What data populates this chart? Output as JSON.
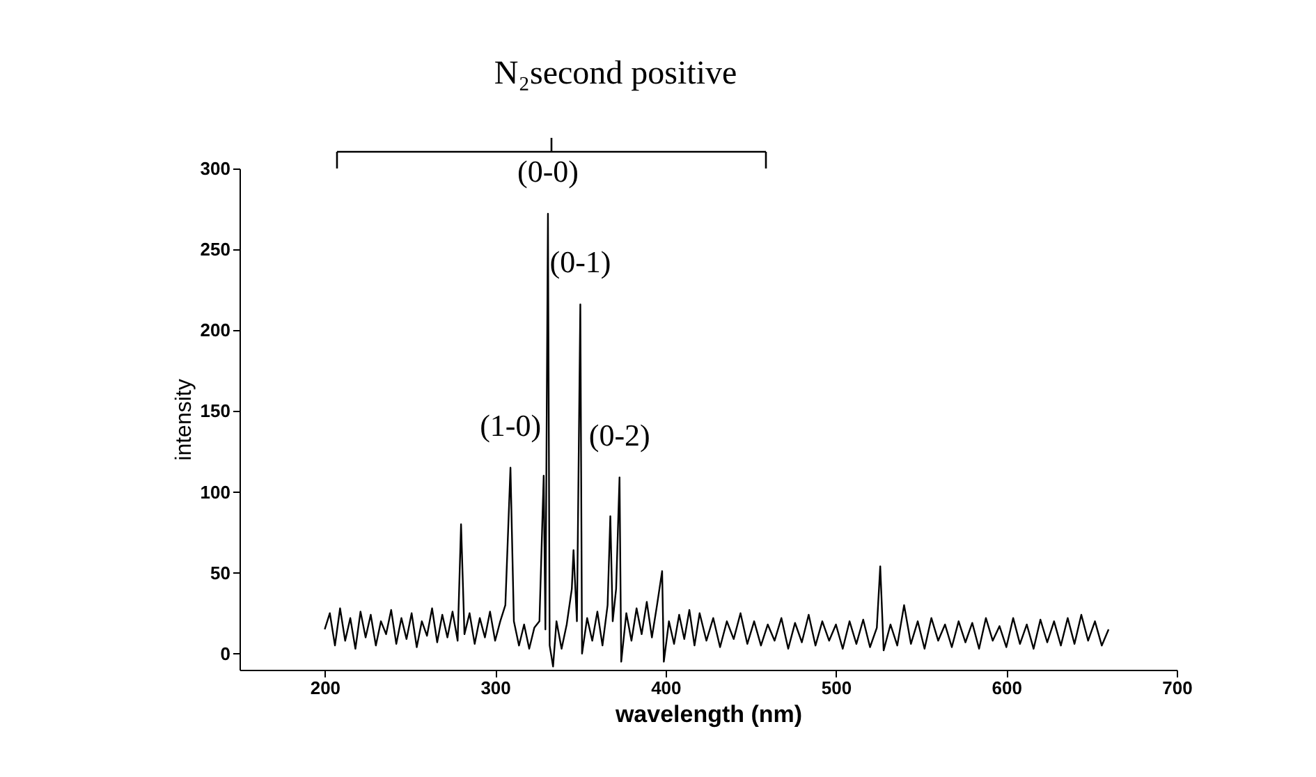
{
  "chart_data": {
    "type": "line",
    "title": "N₂second positive",
    "xlabel": "wavelength (nm)",
    "ylabel": "intensity",
    "xlim": [
      150,
      700
    ],
    "xticks": [
      200,
      300,
      400,
      500,
      600,
      700
    ],
    "ylim": [
      -10,
      300
    ],
    "yticks": [
      0,
      50,
      100,
      150,
      200,
      250,
      300
    ],
    "grid": false,
    "marker": "none",
    "line_style": "solid",
    "annotations": [
      {
        "text": "(1-0)",
        "x": 309,
        "y": 115
      },
      {
        "text": "(0-0)",
        "x": 331,
        "y": 272
      },
      {
        "text": "(0-1)",
        "x": 350,
        "y": 216
      },
      {
        "text": "(0-2)",
        "x": 373,
        "y": 109
      }
    ],
    "series": [
      {
        "color": "#000000",
        "x": [
          200,
          203,
          206,
          209,
          212,
          215,
          218,
          221,
          224,
          227,
          230,
          233,
          236,
          239,
          242,
          245,
          248,
          251,
          254,
          257,
          260,
          263,
          266,
          269,
          272,
          275,
          278,
          280,
          282,
          285,
          288,
          291,
          294,
          297,
          300,
          303,
          306,
          309,
          311,
          314,
          317,
          320,
          323,
          326,
          328.5,
          329.5,
          331,
          332,
          334,
          336,
          339,
          342,
          345,
          346,
          348,
          350,
          351,
          354,
          357,
          360,
          363,
          366,
          367.6,
          369,
          371,
          373,
          374,
          377,
          380,
          383,
          386,
          389,
          392,
          395,
          398,
          399,
          402,
          405,
          408,
          411,
          414,
          417,
          420,
          424,
          428,
          432,
          436,
          440,
          444,
          448,
          452,
          456,
          460,
          464,
          468,
          472,
          476,
          480,
          484,
          488,
          492,
          496,
          500,
          504,
          508,
          512,
          516,
          520,
          524,
          526,
          528,
          532,
          536,
          540,
          544,
          548,
          552,
          556,
          560,
          564,
          568,
          572,
          576,
          580,
          584,
          588,
          592,
          596,
          600,
          604,
          608,
          612,
          616,
          620,
          624,
          628,
          632,
          636,
          640,
          644,
          648,
          652,
          656,
          660
        ],
        "values": [
          15,
          25,
          5,
          28,
          8,
          22,
          3,
          26,
          10,
          24,
          5,
          20,
          12,
          27,
          6,
          22,
          9,
          25,
          4,
          20,
          11,
          28,
          7,
          24,
          10,
          26,
          8,
          80,
          12,
          25,
          6,
          22,
          10,
          26,
          8,
          20,
          30,
          115,
          20,
          5,
          18,
          3,
          16,
          20,
          110,
          15,
          272,
          5,
          -8,
          20,
          3,
          18,
          40,
          64,
          20,
          216,
          0,
          22,
          8,
          26,
          5,
          30,
          85,
          20,
          40,
          109,
          -5,
          25,
          8,
          28,
          12,
          32,
          10,
          30,
          51,
          -5,
          20,
          6,
          24,
          9,
          27,
          5,
          25,
          8,
          22,
          4,
          20,
          9,
          25,
          6,
          20,
          5,
          18,
          8,
          22,
          3,
          19,
          7,
          24,
          5,
          20,
          8,
          18,
          3,
          20,
          6,
          21,
          4,
          16,
          54,
          2,
          18,
          5,
          30,
          6,
          20,
          3,
          22,
          8,
          18,
          4,
          20,
          7,
          19,
          3,
          22,
          8,
          17,
          4,
          22,
          6,
          18,
          3,
          21,
          7,
          20,
          5,
          22,
          6,
          24,
          8,
          20,
          5,
          15
        ]
      }
    ]
  }
}
